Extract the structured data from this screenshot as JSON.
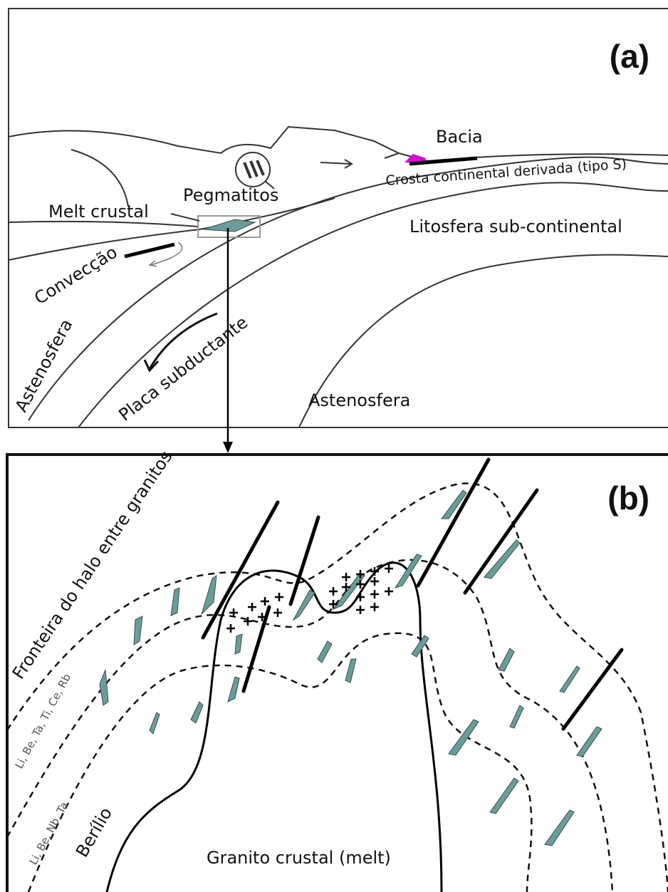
{
  "panel_a": {
    "label": "(a)",
    "basin": "Bacia",
    "crust": "Crosta continental derivada (tipo S)",
    "pegmatites": "Pegmatitos",
    "melt": "Melt crustal",
    "lithosphere": "Litosfera sub-continental",
    "convection": "Convecção",
    "asthenosphere_left": "Astenosfera",
    "slab": "Placa subductante",
    "asthenosphere_bottom": "Astenosfera"
  },
  "panel_b": {
    "label": "(b)",
    "halo": "Fronteira do halo entre granitos",
    "zone_outer": "Li, Be, Ta, Ti, Ce, Rb",
    "zone_inner": "Li, Be, Nb, Ta",
    "beryllium": "Berílio",
    "granite": "Granito crustal (melt)"
  }
}
